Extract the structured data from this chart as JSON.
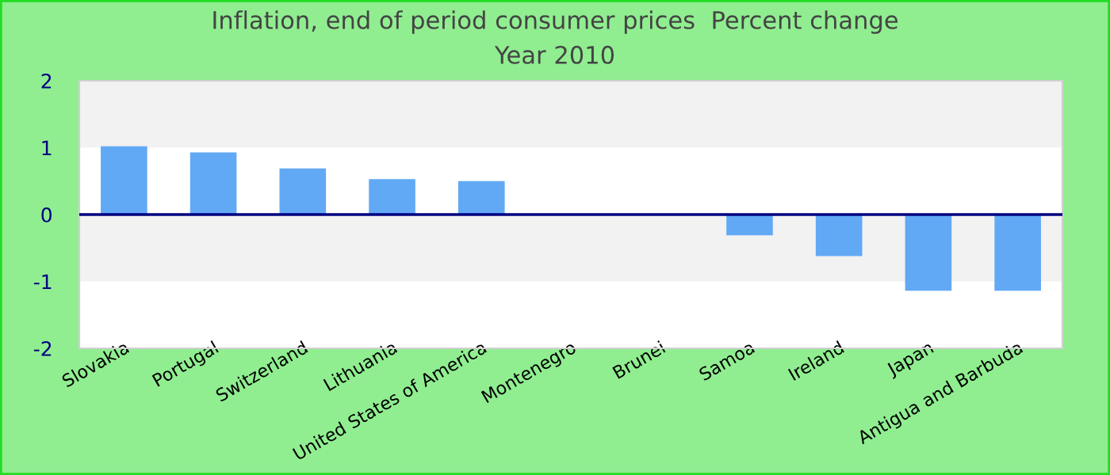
{
  "chart_data": {
    "type": "bar",
    "title": "Inflation, end of period consumer prices  Percent change",
    "subtitle": "Year 2010",
    "categories": [
      "Slovakia",
      "Portugal",
      "Switzerland",
      "Lithuania",
      "United States of America",
      "Montenegro",
      "Brunei",
      "Samoa",
      "Ireland",
      "Japan",
      "Antigua and Barbuda"
    ],
    "values": [
      1.02,
      0.93,
      0.69,
      0.53,
      0.5,
      0,
      0,
      -0.31,
      -0.62,
      -1.14,
      -1.14
    ],
    "color": "#62a9f5",
    "ylim": [
      -2,
      2
    ],
    "yticks": [
      -2,
      -1,
      0,
      1,
      2
    ],
    "ref_lines": [
      {
        "axis": "y",
        "value": 0,
        "color": "#000080"
      }
    ],
    "bands": [
      {
        "axis": "y",
        "from": 1,
        "to": 2,
        "color": "#f2f2f2"
      },
      {
        "axis": "y",
        "from": -1,
        "to": 0,
        "color": "#f2f2f2"
      }
    ],
    "grid": false,
    "legend": false
  }
}
